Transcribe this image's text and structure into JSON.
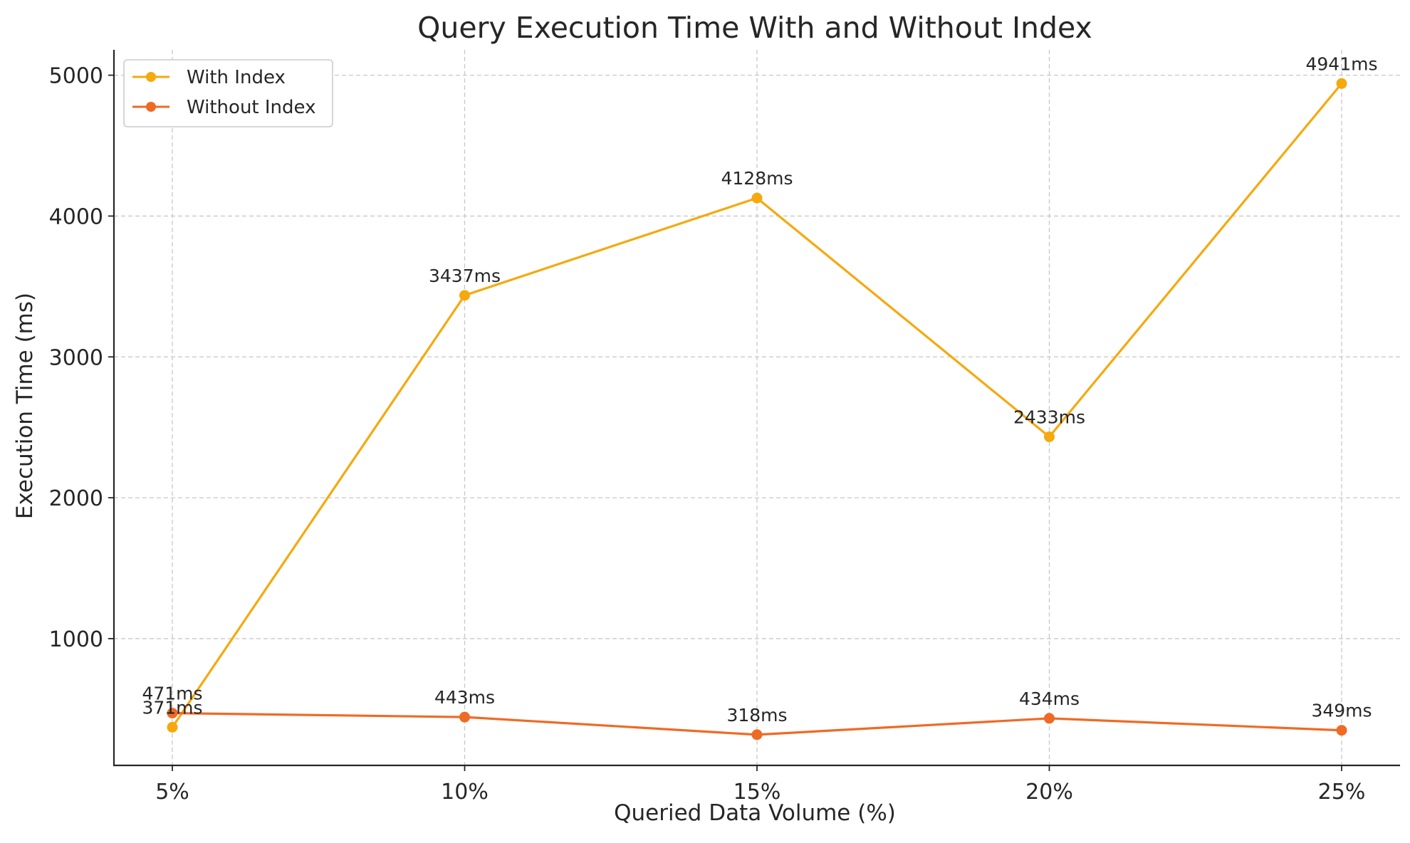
{
  "chart_data": {
    "type": "line",
    "title": "Query Execution Time With and Without Index",
    "xlabel": "Queried Data Volume (%)",
    "ylabel": "Execution Time (ms)",
    "categories": [
      "5%",
      "10%",
      "15%",
      "20%",
      "25%"
    ],
    "ylim": [
      100,
      5180
    ],
    "yticks": [
      1000,
      2000,
      3000,
      4000,
      5000
    ],
    "ytick_labels": [
      "1000",
      "2000",
      "3000",
      "4000",
      "5000"
    ],
    "grid": true,
    "legend_position": "top-left",
    "series": [
      {
        "name": "With Index",
        "color": "#f5a90f",
        "values": [
          371,
          3437,
          4128,
          2433,
          4941
        ],
        "labels": [
          "371ms",
          "3437ms",
          "4128ms",
          "2433ms",
          "4941ms"
        ]
      },
      {
        "name": "Without Index",
        "color": "#ef6a25",
        "values": [
          471,
          443,
          318,
          434,
          349
        ],
        "labels": [
          "471ms",
          "443ms",
          "318ms",
          "434ms",
          "349ms"
        ]
      }
    ]
  }
}
